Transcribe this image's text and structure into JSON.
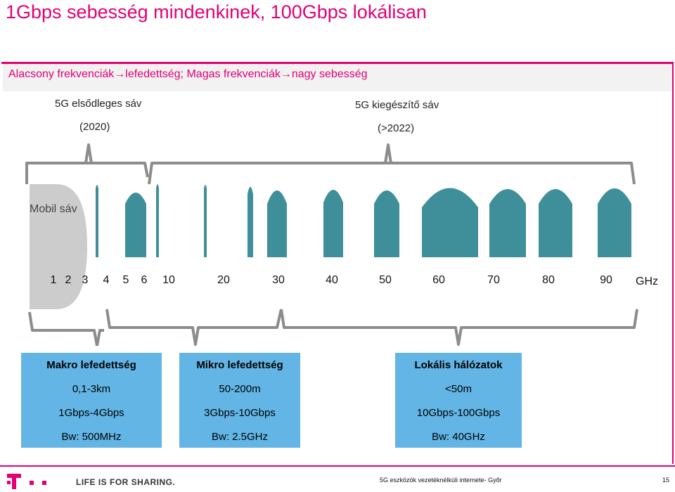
{
  "header": {
    "title": "1Gbps sebesség mindenkinek, 100Gbps lokálisan",
    "subtitle": "Alacsony frekvenciák→lefedettség; Magas frekvenciák→nagy sebesség"
  },
  "bands": {
    "primary_label": "5G elsődleges sáv",
    "primary_year": "(2020)",
    "secondary_label": "5G kiegészítő sáv",
    "secondary_year": "(>2022)"
  },
  "mobile_band_label": "Mobil sáv",
  "axis": {
    "ticks": [
      "1",
      "2",
      "3",
      "4",
      "5",
      "6",
      "10",
      "20",
      "30",
      "40",
      "50",
      "60",
      "70",
      "80",
      "90"
    ],
    "unit": "GHz"
  },
  "coverage_boxes": [
    {
      "title": "Makro lefedettség",
      "range": "0,1-3km",
      "speed": "1Gbps-4Gbps",
      "bandwidth": "Bw: 500MHz"
    },
    {
      "title": "Mikro lefedettség",
      "range": "50-200m",
      "speed": "3Gbps-10Gbps",
      "bandwidth": "Bw: 2.5GHz"
    },
    {
      "title": "Lokális hálózatok",
      "range": "<50m",
      "speed": "10Gbps-100Gbps",
      "bandwidth": "Bw: 40GHz"
    }
  ],
  "footer": {
    "slogan": "LIFE IS FOR SHARING.",
    "text": "5G eszközök vezetéknélküli internete- Győr",
    "page": "15"
  },
  "colors": {
    "magenta": "#e20074",
    "teal": "#3f8f9a",
    "box_blue": "#62b5e5",
    "mobile_gray": "#cccccc",
    "bracket_gray": "#8c8c8c"
  }
}
